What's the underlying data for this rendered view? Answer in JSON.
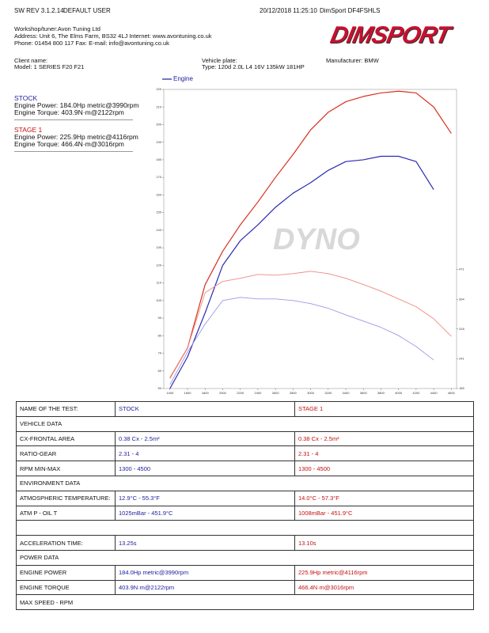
{
  "header": {
    "software": "SW REV 3.1.2.14",
    "user": "DEFAULT USER",
    "datetime": "20/12/2018 11:25:10",
    "device": "DimSport DF4FSHLS",
    "logo": "DIMSPORT"
  },
  "workshop": [
    "Workshop/tuner:Avon Tuning Ltd",
    "Address: Unit 6, The Elms Farm, BS32 4LJ Internet: www.avontuning.co.uk",
    "Phone: 01454 800 117 Fax:  E-mail: info@avontuning.co.uk"
  ],
  "vehicle": {
    "client_label": "Client name:",
    "model": "Model: 1 SERIES F20 F21",
    "plate_label": "Vehicle plate:",
    "type": "Type: 120d 2.0L L4 16V 135kW 181HP",
    "manufacturer": "Manufacturer: BMW"
  },
  "runs": [
    {
      "title": "STOCK",
      "power": "Engine Power: 184.0Hp metric@3990rpm",
      "torque": "Engine Torque: 403.9N·m@2122rpm"
    },
    {
      "title": "STAGE 1",
      "power": "Engine Power: 225.9Hp metric@4116rpm",
      "torque": "Engine Torque: 466.4N·m@3016rpm"
    }
  ],
  "chart_data": {
    "type": "line",
    "legend": "Engine",
    "watermark": "DYNO",
    "x": [
      1400,
      1600,
      1800,
      2000,
      2200,
      2400,
      2600,
      2800,
      3000,
      3200,
      3400,
      3600,
      3800,
      4000,
      4200,
      4400,
      4600
    ],
    "xlim": [
      1330,
      4660
    ],
    "xticks": [
      1400,
      1600,
      1800,
      2000,
      2200,
      2400,
      2600,
      2800,
      3000,
      3200,
      3400,
      3600,
      3800,
      4000,
      4200,
      4400,
      4600
    ],
    "ylim": [
      50,
      220
    ],
    "yticks": [
      50,
      60,
      70,
      80,
      90,
      100,
      110,
      120,
      130,
      140,
      150,
      160,
      170,
      180,
      190,
      200,
      210,
      220
    ],
    "y2lim": [
      165,
      933
    ],
    "y2ticks": [
      165,
      241,
      318,
      394,
      471
    ],
    "series": [
      {
        "color": "#2a2ab0",
        "values": [
          50,
          68,
          93,
          120,
          134,
          143,
          153,
          161,
          167,
          174,
          179,
          180,
          182,
          182,
          179,
          163,
          null
        ]
      },
      {
        "color": "#d83020",
        "values": [
          56,
          73,
          109,
          128,
          143,
          156,
          170,
          183,
          197,
          207,
          213,
          216,
          218,
          219,
          218,
          210,
          195
        ]
      },
      {
        "color": "#9a9ae6",
        "axis": "y2",
        "values": [
          175,
          259,
          330,
          391,
          399,
          395,
          395,
          391,
          383,
          371,
          354,
          338,
          322,
          301,
          273,
          238,
          null
        ]
      },
      {
        "color": "#ee8a80",
        "axis": "y2",
        "values": [
          191,
          269,
          411,
          440,
          448,
          458,
          456,
          460,
          466,
          460,
          448,
          432,
          415,
          395,
          375,
          344,
          299
        ]
      }
    ]
  },
  "table": {
    "rows": [
      [
        "NAME OF THE TEST:",
        "STOCK",
        "STAGE 1"
      ],
      [
        "VEHICLE DATA"
      ],
      [
        "CX-FRONTAL AREA",
        "0.38 Cx - 2.5m²",
        "0.38 Cx - 2.5m²"
      ],
      [
        "RATIO-GEAR",
        "2.31 - 4",
        "2.31 - 4"
      ],
      [
        "RPM MIN-MAX",
        "1300 - 4500",
        "1300 - 4500"
      ],
      [
        "ENVIRONMENT DATA"
      ],
      [
        "ATMOSPHERIC TEMPERATURE:",
        "12.9°C - 55.3°F",
        "14.0°C - 57.3°F"
      ],
      [
        "ATM P - OIL T",
        "1025mBar - 451.9°C",
        "1008mBar - 451.9°C"
      ],
      [],
      [
        "ACCELERATION TIME:",
        "13.25s",
        "13.10s"
      ],
      [
        "POWER DATA"
      ],
      [
        "ENGINE POWER",
        "184.0Hp metric@3990rpm",
        "225.9Hp metric@4116rpm"
      ],
      [
        "ENGINE TORQUE",
        "403.9N·m@2122rpm",
        "466.4N·m@3016rpm"
      ],
      [
        "MAX SPEED - RPM"
      ]
    ]
  }
}
